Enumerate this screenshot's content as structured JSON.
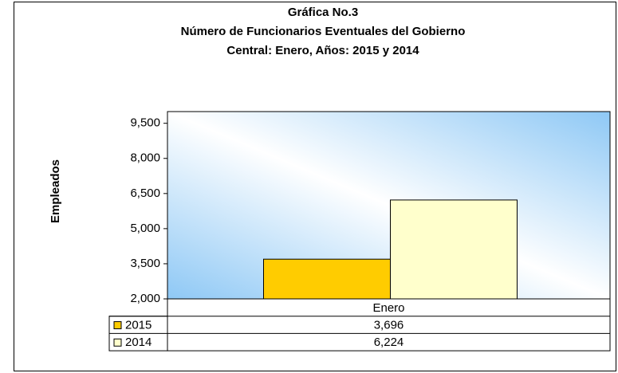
{
  "chart_data": {
    "type": "bar",
    "title": [
      "Gráfica No.3",
      "Número de Funcionarios Eventuales del Gobierno",
      "Central: Enero, Años: 2015 y 2014"
    ],
    "y_label": "Empleados",
    "categories": [
      "Enero"
    ],
    "series": [
      {
        "name": "2015",
        "color": "#ffcc00",
        "values": [
          3696
        ],
        "value_labels": [
          "3,696"
        ]
      },
      {
        "name": "2014",
        "color": "#ffffcc",
        "values": [
          6224
        ],
        "value_labels": [
          "6,224"
        ]
      }
    ],
    "ylim": [
      2000,
      10000
    ],
    "yticks": [
      {
        "value": 2000,
        "label": "2,000"
      },
      {
        "value": 3500,
        "label": "3,500"
      },
      {
        "value": 5000,
        "label": "5,000"
      },
      {
        "value": 6500,
        "label": "6,500"
      },
      {
        "value": 8000,
        "label": "8,000"
      },
      {
        "value": 9500,
        "label": "9,500"
      }
    ]
  }
}
